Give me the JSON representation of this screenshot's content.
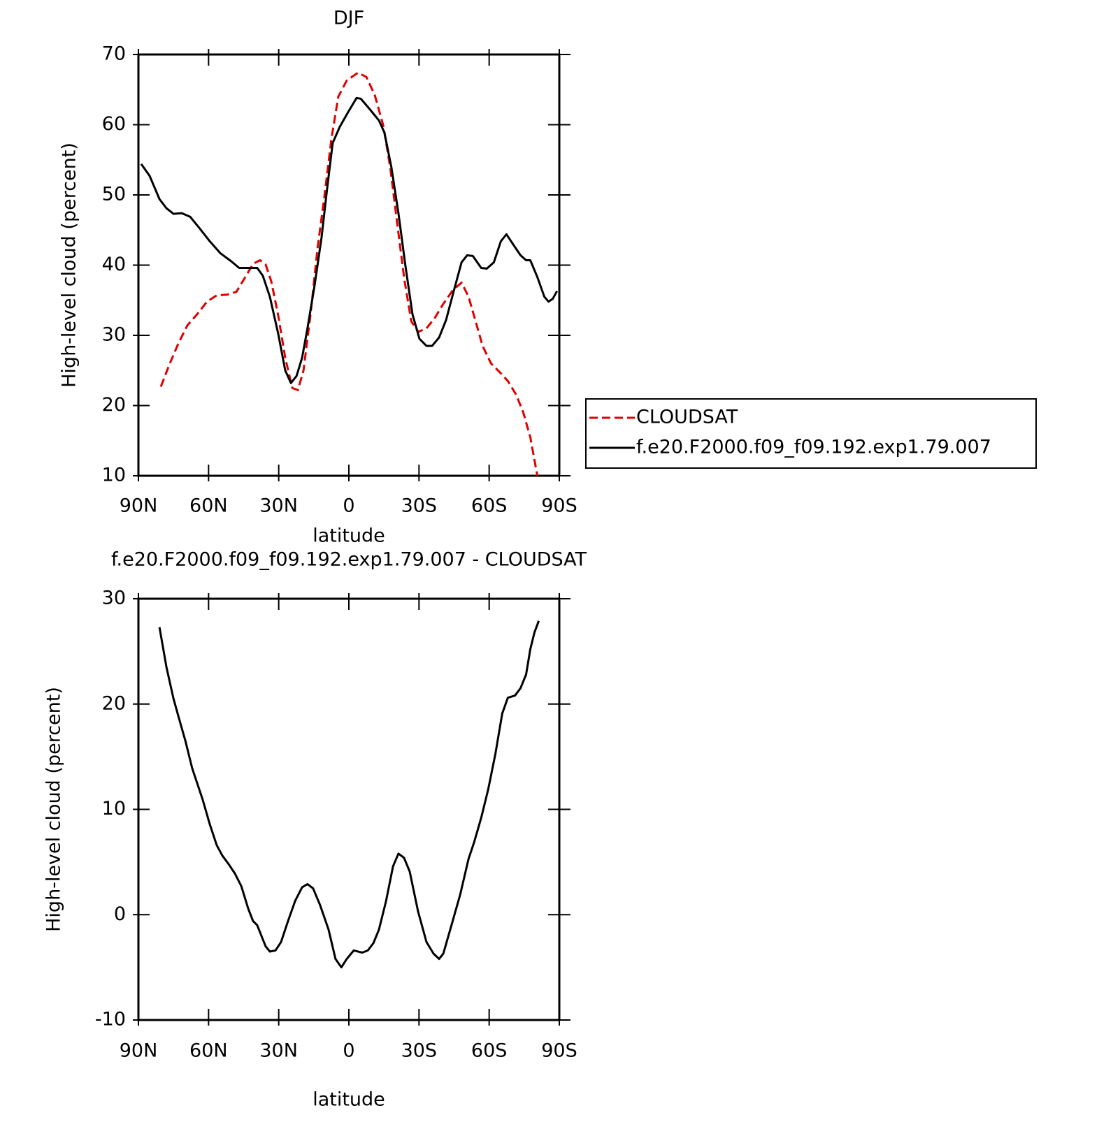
{
  "chart_data": [
    {
      "type": "line",
      "title": "DJF",
      "xlabel": "latitude",
      "ylabel": "High-level cloud (percent)",
      "xlim": [
        90,
        -90
      ],
      "ylim": [
        10,
        70
      ],
      "xticks": [
        {
          "value": 90,
          "label": "90N"
        },
        {
          "value": 60,
          "label": "60N"
        },
        {
          "value": 30,
          "label": "30N"
        },
        0,
        {
          "value": -30,
          "label": "30S"
        },
        {
          "value": -60,
          "label": "60S"
        },
        {
          "value": -90,
          "label": "90S"
        }
      ],
      "yticks": [
        10,
        20,
        30,
        40,
        50,
        60,
        70
      ],
      "legend": "right",
      "series": [
        {
          "name": "CLOUDSAT",
          "color": "#e00000",
          "dashed": true,
          "x": [
            80.4,
            76.8,
            73.0,
            69.1,
            64.9,
            60.7,
            56.5,
            52.0,
            48.1,
            44.5,
            40.9,
            38.0,
            35.6,
            33.2,
            30.2,
            27.2,
            24.2,
            21.8,
            19.4,
            16.4,
            13.4,
            10.4,
            7.5,
            4.5,
            0.9,
            -3.9,
            -7.5,
            -11.1,
            -14.7,
            -17.7,
            -20.7,
            -23.7,
            -26.7,
            -29.7,
            -33.2,
            -36.8,
            -40.4,
            -44.6,
            -48.2,
            -51.2,
            -54.2,
            -57.2,
            -60.8,
            -64.4,
            -68.0,
            -71.6,
            -74.6,
            -77.6,
            -80.6
          ],
          "values": [
            22.7,
            25.8,
            28.8,
            31.4,
            33.0,
            34.8,
            35.7,
            35.8,
            36.2,
            38.2,
            40.2,
            40.7,
            40.1,
            37.7,
            32.8,
            26.8,
            22.5,
            22.2,
            25.0,
            33.0,
            42.4,
            49.9,
            57.9,
            64.0,
            66.3,
            67.4,
            66.8,
            64.2,
            59.9,
            53.9,
            45.9,
            38.0,
            32.0,
            30.5,
            31.0,
            32.5,
            34.5,
            36.5,
            37.5,
            35.5,
            32.0,
            28.5,
            26.0,
            24.8,
            23.5,
            21.5,
            19.0,
            15.5,
            10.0
          ]
        },
        {
          "name": "f.e20.F2000.f09_f09.192.exp1.79.007",
          "color": "#000000",
          "dashed": false,
          "x": [
            88.8,
            85.2,
            81.0,
            78.0,
            75.0,
            71.5,
            67.9,
            64.0,
            59.5,
            55.0,
            50.5,
            46.9,
            43.1,
            39.2,
            36.8,
            33.8,
            30.2,
            27.2,
            24.8,
            22.4,
            20.0,
            17.7,
            14.7,
            11.7,
            9.3,
            6.9,
            3.9,
            0.3,
            -3.3,
            -5.1,
            -8.7,
            -12.9,
            -15.2,
            -18.2,
            -21.2,
            -24.2,
            -27.2,
            -30.2,
            -33.2,
            -35.6,
            -38.6,
            -41.6,
            -44.6,
            -48.2,
            -50.6,
            -53.0,
            -56.6,
            -59.0,
            -62.0,
            -65.0,
            -67.4,
            -70.4,
            -73.4,
            -75.8,
            -77.6,
            -80.6,
            -83.6,
            -85.4,
            -87.2,
            -89.0
          ],
          "values": [
            54.4,
            52.7,
            49.4,
            48.1,
            47.3,
            47.4,
            46.9,
            45.3,
            43.4,
            41.7,
            40.6,
            39.6,
            39.6,
            39.6,
            38.5,
            35.5,
            30.2,
            25.0,
            23.2,
            24.2,
            26.8,
            31.0,
            37.0,
            43.9,
            50.9,
            57.4,
            59.7,
            61.8,
            63.8,
            63.7,
            62.3,
            60.6,
            58.9,
            53.9,
            47.4,
            39.9,
            33.0,
            29.5,
            28.5,
            28.5,
            29.7,
            32.2,
            36.0,
            40.4,
            41.4,
            41.3,
            39.6,
            39.5,
            40.4,
            43.4,
            44.4,
            42.9,
            41.4,
            40.7,
            40.7,
            38.3,
            35.5,
            34.8,
            35.2,
            36.3
          ]
        }
      ]
    },
    {
      "type": "line",
      "title": "f.e20.F2000.f09_f09.192.exp1.79.007 - CLOUDSAT",
      "xlabel": "latitude",
      "ylabel": "High-level cloud (percent)",
      "xlim": [
        90,
        -90
      ],
      "ylim": [
        -10,
        30
      ],
      "xticks": [
        {
          "value": 90,
          "label": "90N"
        },
        {
          "value": 60,
          "label": "60N"
        },
        {
          "value": 30,
          "label": "30N"
        },
        0,
        {
          "value": -30,
          "label": "30S"
        },
        {
          "value": -60,
          "label": "60S"
        },
        {
          "value": -90,
          "label": "90S"
        }
      ],
      "yticks": [
        -10,
        0,
        10,
        20,
        30
      ],
      "series": [
        {
          "color": "#000000",
          "dashed": false,
          "x": [
            81.0,
            78.0,
            75.0,
            73.0,
            69.9,
            67.0,
            62.5,
            59.5,
            56.5,
            54.1,
            51.1,
            48.7,
            46.0,
            43.1,
            41.0,
            39.2,
            35.6,
            33.8,
            31.4,
            29.0,
            26.0,
            23.0,
            20.0,
            17.7,
            15.3,
            12.3,
            8.7,
            5.7,
            3.2,
            0.9,
            -2.1,
            -5.7,
            -8.1,
            -10.5,
            -12.9,
            -15.9,
            -18.9,
            -21.2,
            -23.6,
            -26.0,
            -29.6,
            -33.2,
            -36.2,
            -38.6,
            -40.4,
            -44.0,
            -47.6,
            -51.2,
            -53.6,
            -56.6,
            -59.6,
            -62.6,
            -65.6,
            -68.0,
            -71.0,
            -73.4,
            -75.8,
            -77.6,
            -79.4,
            -81.2
          ],
          "values": [
            27.3,
            23.5,
            20.5,
            18.9,
            16.5,
            13.9,
            10.9,
            8.6,
            6.6,
            5.6,
            4.7,
            3.9,
            2.7,
            0.6,
            -0.6,
            -1.0,
            -3.0,
            -3.5,
            -3.4,
            -2.6,
            -0.6,
            1.3,
            2.6,
            2.9,
            2.5,
            0.9,
            -1.4,
            -4.2,
            -5.0,
            -4.2,
            -3.4,
            -3.6,
            -3.4,
            -2.7,
            -1.4,
            1.3,
            4.6,
            5.8,
            5.4,
            4.1,
            0.3,
            -2.6,
            -3.7,
            -4.2,
            -3.7,
            -0.9,
            1.9,
            5.3,
            6.9,
            9.2,
            11.9,
            15.2,
            19.1,
            20.6,
            20.8,
            21.5,
            22.8,
            25.2,
            26.8,
            27.9
          ]
        }
      ]
    }
  ]
}
